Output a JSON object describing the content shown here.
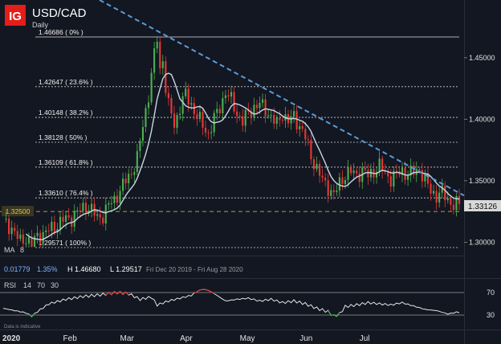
{
  "header": {
    "logo_text": "IG",
    "symbol": "USD/CAD",
    "timeframe": "Daily"
  },
  "price_badge": "1.33126",
  "support_label": "1.32500",
  "ma_panel": {
    "ma_label": "MA",
    "ma_period": "8",
    "value_1": "0.01779",
    "value_2": "1.35%",
    "high_text": "H 1.46680",
    "low_text": "L 1.29517",
    "date_range": "Fri Dec 20 2019 - Fri Aug 28 2020"
  },
  "rsi_panel": {
    "rsi_label": "RSI",
    "p1": "14",
    "p2": "70",
    "p3": "30"
  },
  "footer_note": "Data is indicative",
  "colors": {
    "background": "#131722",
    "up_candle": "#4caf50",
    "down_candle": "#e53935",
    "ma_line": "#c8d6e5",
    "trendline": "#5b9bd5",
    "fib_line": "#d0d0d0",
    "logo_red": "#e31d1a",
    "badge_bg": "#d8d8d8",
    "support_badge": "#e8c547"
  },
  "chart_data": {
    "type": "candlestick",
    "title": "USD/CAD",
    "subtitle": "Daily",
    "y_axis": {
      "ticks": [
        1.3,
        1.35,
        1.4,
        1.45
      ],
      "tick_labels": [
        "1.30000",
        "1.35000",
        "1.40000",
        "1.45000"
      ],
      "range": [
        1.285,
        1.475
      ]
    },
    "x_axis": {
      "tick_labels": [
        "2020",
        "Feb",
        "Mar",
        "Apr",
        "May",
        "Jun",
        "Jul"
      ]
    },
    "fib_levels": [
      {
        "label": "1.46686 ( 0% )",
        "value": 1.46686
      },
      {
        "label": "1.42647 ( 23.6% )",
        "value": 1.42647
      },
      {
        "label": "1.40148 ( 38.2% )",
        "value": 1.40148
      },
      {
        "label": "1.38128 ( 50% )",
        "value": 1.38128
      },
      {
        "label": "1.36109 ( 61.8% )",
        "value": 1.36109
      },
      {
        "label": "1.33610 ( 76.4% )",
        "value": 1.3361
      },
      {
        "label": "1.29571 ( 100% )",
        "value": 1.29571
      }
    ],
    "support_level": 1.325,
    "last_price": 1.33126,
    "trendline": {
      "from": [
        0,
        1.49
      ],
      "to": [
        160,
        1.338
      ]
    },
    "ma_period": 8,
    "rsi": {
      "period": 14,
      "overbought": 70,
      "oversold": 30,
      "tick_labels": [
        "70",
        "30"
      ],
      "keypoints": [
        [
          0,
          42
        ],
        [
          4,
          38
        ],
        [
          8,
          34
        ],
        [
          10,
          28
        ],
        [
          12,
          36
        ],
        [
          16,
          50
        ],
        [
          22,
          58
        ],
        [
          28,
          63
        ],
        [
          34,
          66
        ],
        [
          40,
          70
        ],
        [
          44,
          68
        ],
        [
          48,
          58
        ],
        [
          52,
          62
        ],
        [
          54,
          48
        ],
        [
          58,
          55
        ],
        [
          62,
          60
        ],
        [
          66,
          65
        ],
        [
          68,
          72
        ],
        [
          70,
          76
        ],
        [
          72,
          74
        ],
        [
          75,
          65
        ],
        [
          78,
          55
        ],
        [
          82,
          58
        ],
        [
          86,
          60
        ],
        [
          90,
          55
        ],
        [
          94,
          58
        ],
        [
          98,
          52
        ],
        [
          102,
          55
        ],
        [
          106,
          50
        ],
        [
          110,
          42
        ],
        [
          114,
          36
        ],
        [
          116,
          28
        ],
        [
          118,
          32
        ],
        [
          120,
          45
        ],
        [
          124,
          48
        ],
        [
          128,
          52
        ],
        [
          132,
          50
        ],
        [
          136,
          48
        ],
        [
          140,
          52
        ],
        [
          144,
          46
        ],
        [
          148,
          40
        ],
        [
          152,
          38
        ],
        [
          156,
          32
        ],
        [
          159,
          35
        ]
      ]
    },
    "keypoints": [
      [
        0,
        1.316
      ],
      [
        3,
        1.312
      ],
      [
        6,
        1.3
      ],
      [
        8,
        1.304
      ],
      [
        10,
        1.298
      ],
      [
        12,
        1.305
      ],
      [
        15,
        1.308
      ],
      [
        18,
        1.313
      ],
      [
        21,
        1.318
      ],
      [
        24,
        1.32
      ],
      [
        27,
        1.326
      ],
      [
        29,
        1.33
      ],
      [
        31,
        1.326
      ],
      [
        33,
        1.32
      ],
      [
        35,
        1.322
      ],
      [
        37,
        1.33
      ],
      [
        39,
        1.335
      ],
      [
        41,
        1.342
      ],
      [
        43,
        1.35
      ],
      [
        45,
        1.357
      ],
      [
        47,
        1.368
      ],
      [
        49,
        1.395
      ],
      [
        51,
        1.42
      ],
      [
        53,
        1.452
      ],
      [
        54,
        1.466
      ],
      [
        55,
        1.44
      ],
      [
        56,
        1.45
      ],
      [
        57,
        1.425
      ],
      [
        58,
        1.41
      ],
      [
        59,
        1.405
      ],
      [
        60,
        1.395
      ],
      [
        62,
        1.41
      ],
      [
        64,
        1.42
      ],
      [
        66,
        1.412
      ],
      [
        68,
        1.402
      ],
      [
        70,
        1.395
      ],
      [
        72,
        1.388
      ],
      [
        74,
        1.4
      ],
      [
        76,
        1.41
      ],
      [
        78,
        1.422
      ],
      [
        80,
        1.415
      ],
      [
        82,
        1.405
      ],
      [
        84,
        1.398
      ],
      [
        86,
        1.405
      ],
      [
        88,
        1.41
      ],
      [
        90,
        1.412
      ],
      [
        92,
        1.408
      ],
      [
        94,
        1.402
      ],
      [
        96,
        1.395
      ],
      [
        98,
        1.405
      ],
      [
        100,
        1.398
      ],
      [
        102,
        1.402
      ],
      [
        104,
        1.395
      ],
      [
        106,
        1.385
      ],
      [
        108,
        1.37
      ],
      [
        110,
        1.36
      ],
      [
        112,
        1.35
      ],
      [
        114,
        1.345
      ],
      [
        116,
        1.338
      ],
      [
        118,
        1.348
      ],
      [
        120,
        1.355
      ],
      [
        122,
        1.357
      ],
      [
        124,
        1.355
      ],
      [
        126,
        1.358
      ],
      [
        128,
        1.354
      ],
      [
        130,
        1.358
      ],
      [
        132,
        1.362
      ],
      [
        134,
        1.356
      ],
      [
        136,
        1.352
      ],
      [
        138,
        1.355
      ],
      [
        140,
        1.358
      ],
      [
        142,
        1.355
      ],
      [
        144,
        1.357
      ],
      [
        146,
        1.36
      ],
      [
        148,
        1.35
      ],
      [
        150,
        1.342
      ],
      [
        152,
        1.338
      ],
      [
        154,
        1.34
      ],
      [
        156,
        1.335
      ],
      [
        158,
        1.33
      ],
      [
        160,
        1.331
      ]
    ]
  }
}
